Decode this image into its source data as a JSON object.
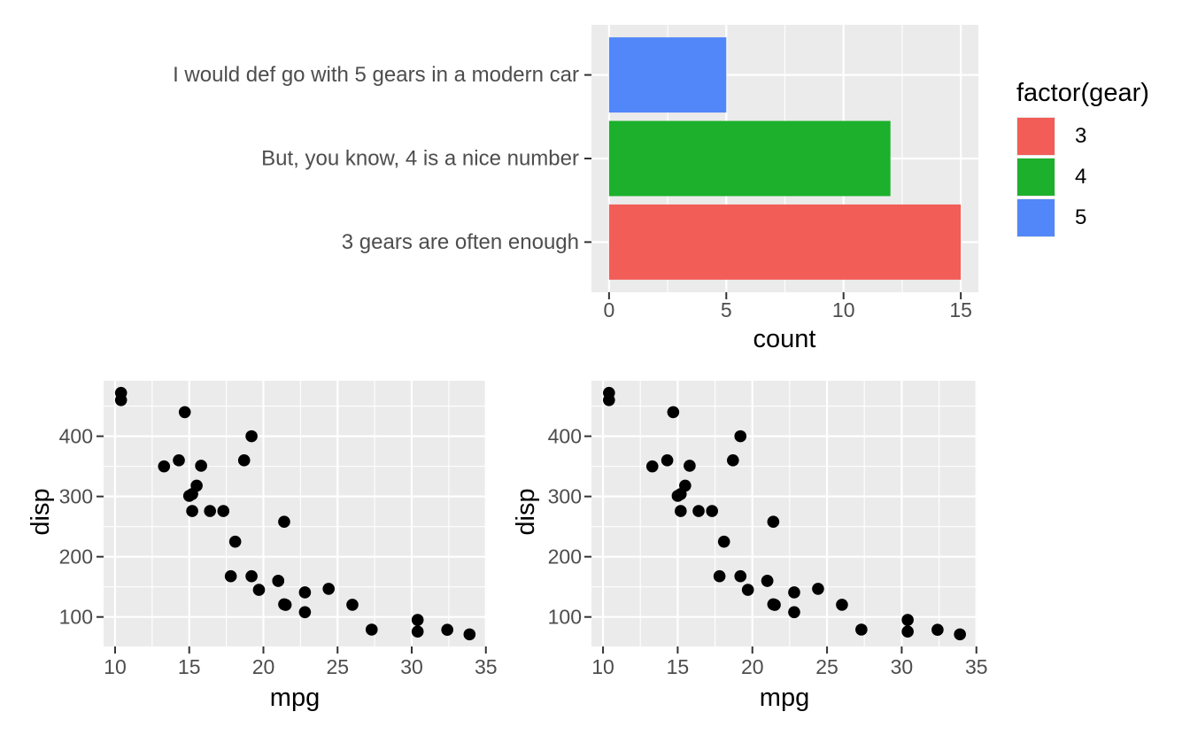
{
  "style": {
    "panel_bg": "#EBEBEB",
    "grid_color": "#FFFFFF",
    "tick_mark_color": "#333333",
    "tick_label_color": "#4D4D4D",
    "axis_title_color": "#000000",
    "point_color": "#000000",
    "bar_red": "#F25D58",
    "bar_green": "#1CB02C",
    "bar_blue": "#5287FA"
  },
  "chart_data": [
    {
      "type": "bar",
      "orientation": "horizontal",
      "xlabel": "count",
      "grid": true,
      "xlim": [
        -0.75,
        15.75
      ],
      "x_ticks": [
        0,
        5,
        10,
        15
      ],
      "x_minor_ticks": [
        2.5,
        7.5,
        12.5
      ],
      "rows": [
        {
          "label": "I would def go with 5 gears in a modern car",
          "gear": "5",
          "count": 5,
          "color": "#5287FA"
        },
        {
          "label": "But, you know, 4 is a nice number",
          "gear": "4",
          "count": 12,
          "color": "#1CB02C"
        },
        {
          "label": "3 gears are often enough",
          "gear": "3",
          "count": 15,
          "color": "#F25D58"
        }
      ],
      "legend": {
        "position": "right",
        "title": "factor(gear)",
        "entries": [
          {
            "label": "3",
            "color": "#F25D58"
          },
          {
            "label": "4",
            "color": "#1CB02C"
          },
          {
            "label": "5",
            "color": "#5287FA"
          }
        ]
      }
    },
    {
      "type": "scatter",
      "xlabel": "mpg",
      "ylabel": "disp",
      "grid": true,
      "xlim": [
        9.225,
        35.075
      ],
      "ylim": [
        51.06,
        492.04
      ],
      "x_ticks": [
        10,
        15,
        20,
        25,
        30,
        35
      ],
      "y_ticks": [
        100,
        200,
        300,
        400
      ],
      "x_minor_ticks": [
        12.5,
        17.5,
        22.5,
        27.5,
        32.5
      ],
      "y_minor_ticks": [
        150,
        250,
        350,
        450
      ],
      "points": [
        [
          21.0,
          160
        ],
        [
          21.0,
          160
        ],
        [
          22.8,
          108
        ],
        [
          21.4,
          258
        ],
        [
          18.7,
          360
        ],
        [
          18.1,
          225
        ],
        [
          14.3,
          360
        ],
        [
          24.4,
          146.7
        ],
        [
          22.8,
          140.8
        ],
        [
          19.2,
          167.6
        ],
        [
          17.8,
          167.6
        ],
        [
          16.4,
          275.8
        ],
        [
          17.3,
          275.8
        ],
        [
          15.2,
          275.8
        ],
        [
          10.4,
          472
        ],
        [
          10.4,
          460
        ],
        [
          14.7,
          440
        ],
        [
          32.4,
          78.7
        ],
        [
          30.4,
          75.7
        ],
        [
          33.9,
          71.1
        ],
        [
          21.5,
          120.1
        ],
        [
          15.5,
          318
        ],
        [
          15.2,
          304
        ],
        [
          13.3,
          350
        ],
        [
          19.2,
          400
        ],
        [
          27.3,
          79
        ],
        [
          26.0,
          120.3
        ],
        [
          30.4,
          95.1
        ],
        [
          15.8,
          351
        ],
        [
          19.7,
          145
        ],
        [
          15.0,
          301
        ],
        [
          21.4,
          121
        ]
      ]
    },
    {
      "type": "scatter",
      "xlabel": "mpg",
      "ylabel": "disp",
      "grid": true,
      "xlim": [
        9.225,
        35.075
      ],
      "ylim": [
        51.06,
        492.04
      ],
      "x_ticks": [
        10,
        15,
        20,
        25,
        30,
        35
      ],
      "y_ticks": [
        100,
        200,
        300,
        400
      ],
      "x_minor_ticks": [
        12.5,
        17.5,
        22.5,
        27.5,
        32.5
      ],
      "y_minor_ticks": [
        150,
        250,
        350,
        450
      ],
      "points": [
        [
          21.0,
          160
        ],
        [
          21.0,
          160
        ],
        [
          22.8,
          108
        ],
        [
          21.4,
          258
        ],
        [
          18.7,
          360
        ],
        [
          18.1,
          225
        ],
        [
          14.3,
          360
        ],
        [
          24.4,
          146.7
        ],
        [
          22.8,
          140.8
        ],
        [
          19.2,
          167.6
        ],
        [
          17.8,
          167.6
        ],
        [
          16.4,
          275.8
        ],
        [
          17.3,
          275.8
        ],
        [
          15.2,
          275.8
        ],
        [
          10.4,
          472
        ],
        [
          10.4,
          460
        ],
        [
          14.7,
          440
        ],
        [
          32.4,
          78.7
        ],
        [
          30.4,
          75.7
        ],
        [
          33.9,
          71.1
        ],
        [
          21.5,
          120.1
        ],
        [
          15.5,
          318
        ],
        [
          15.2,
          304
        ],
        [
          13.3,
          350
        ],
        [
          19.2,
          400
        ],
        [
          27.3,
          79
        ],
        [
          26.0,
          120.3
        ],
        [
          30.4,
          95.1
        ],
        [
          15.8,
          351
        ],
        [
          19.7,
          145
        ],
        [
          15.0,
          301
        ],
        [
          21.4,
          121
        ]
      ]
    }
  ]
}
